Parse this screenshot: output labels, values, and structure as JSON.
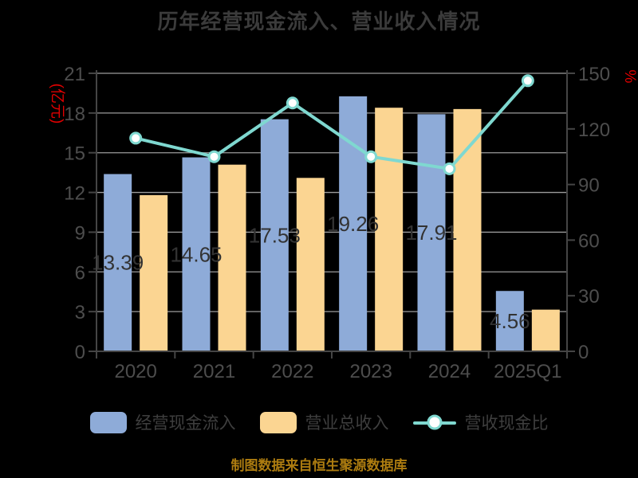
{
  "colors": {
    "background": "#000000",
    "cash_inflow_bar": "#8EABD8",
    "revenue_bar": "#FBD592",
    "ratio_line": "#7FD8D0",
    "marker_fill": "#FFFFFF",
    "axis_name_red": "#E00000",
    "grid_line": "#9B9B9B",
    "axis_line": "#454545",
    "tick_label": "#4D4D4D",
    "data_label": "#333333",
    "title_text": "#3B3B3B",
    "legend_text": "#3E3E3E",
    "source_note_text": "#AD7C10"
  },
  "source_note": "制图数据来自恒生聚源数据库",
  "chart_data": {
    "type": "bar+line",
    "title": "历年经营现金流入、营业收入情况",
    "categories": [
      "2020",
      "2021",
      "2022",
      "2023",
      "2024",
      "2025Q1"
    ],
    "series": [
      {
        "key": "cash-inflow",
        "name": "经营现金流入",
        "type": "bar",
        "axis": "left",
        "color": "#8EABD8",
        "values": [
          13.39,
          14.65,
          17.53,
          19.26,
          17.91,
          4.56
        ],
        "data_labels": [
          "13.39",
          "14.65",
          "17.53",
          "19.26",
          "17.91",
          "4.56"
        ]
      },
      {
        "key": "revenue",
        "name": "营业总收入",
        "type": "bar",
        "axis": "left",
        "color": "#FBD592",
        "values": [
          11.8,
          14.1,
          13.1,
          18.4,
          18.3,
          3.15
        ]
      },
      {
        "key": "cash-ratio",
        "name": "营收现金比",
        "type": "line",
        "axis": "right",
        "color": "#7FD8D0",
        "values": [
          115,
          105,
          134,
          105,
          98.5,
          146
        ]
      }
    ],
    "left_axis": {
      "name": "(亿元)",
      "min": 0,
      "max": 21,
      "ticks": [
        0,
        3,
        6,
        9,
        12,
        15,
        18,
        21
      ]
    },
    "right_axis": {
      "name": "%",
      "min": 0,
      "max": 150,
      "ticks": [
        0,
        30,
        60,
        90,
        120,
        150
      ]
    },
    "grid": true,
    "legend_position": "bottom"
  }
}
